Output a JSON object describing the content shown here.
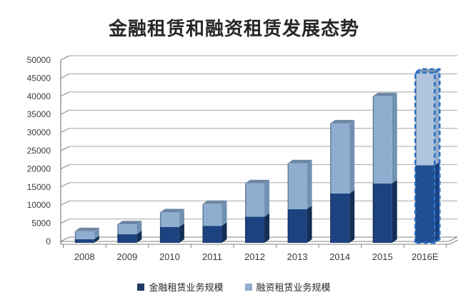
{
  "title": "金融租赁和融资租赁发展态势",
  "chart_data": {
    "type": "bar",
    "stacked": true,
    "pseudo_3d": true,
    "title": "金融租赁和融资租赁发展态势",
    "xlabel": "",
    "ylabel": "",
    "categories": [
      "2008",
      "2009",
      "2010",
      "2011",
      "2012",
      "2013",
      "2014",
      "2015",
      "2016E"
    ],
    "series": [
      {
        "name": "金融租赁业务规模",
        "color": "#1C4380",
        "values": [
          600,
          2000,
          4000,
          4300,
          6800,
          8900,
          13200,
          16000,
          21000
        ]
      },
      {
        "name": "融资租赁业务规模",
        "color": "#8FAECF",
        "values": [
          2200,
          2700,
          4000,
          6000,
          9200,
          12600,
          19300,
          24000,
          25500
        ]
      }
    ],
    "totals": [
      2800,
      4700,
      8000,
      10300,
      16000,
      21500,
      32500,
      40000,
      46500
    ],
    "ylim": [
      0,
      50000
    ],
    "ytick_step": 5000,
    "y_ticks": [
      "0",
      "5000",
      "10000",
      "15000",
      "20000",
      "25000",
      "30000",
      "35000",
      "40000",
      "45000",
      "50000"
    ],
    "grid": true,
    "gridline_color": "#A6A6A6",
    "axis_color": "#808080",
    "label_color": "#3C3C3C",
    "legend_position": "bottom",
    "highlight_last_category": true,
    "highlight_style": "dashed-outline",
    "highlight_color": "#2E6FC4"
  },
  "legend": {
    "items": [
      {
        "label": "金融租赁业务规模",
        "color": "#1F3A64"
      },
      {
        "label": "融资租赁业务规模",
        "color": "#8FAECF"
      }
    ]
  }
}
